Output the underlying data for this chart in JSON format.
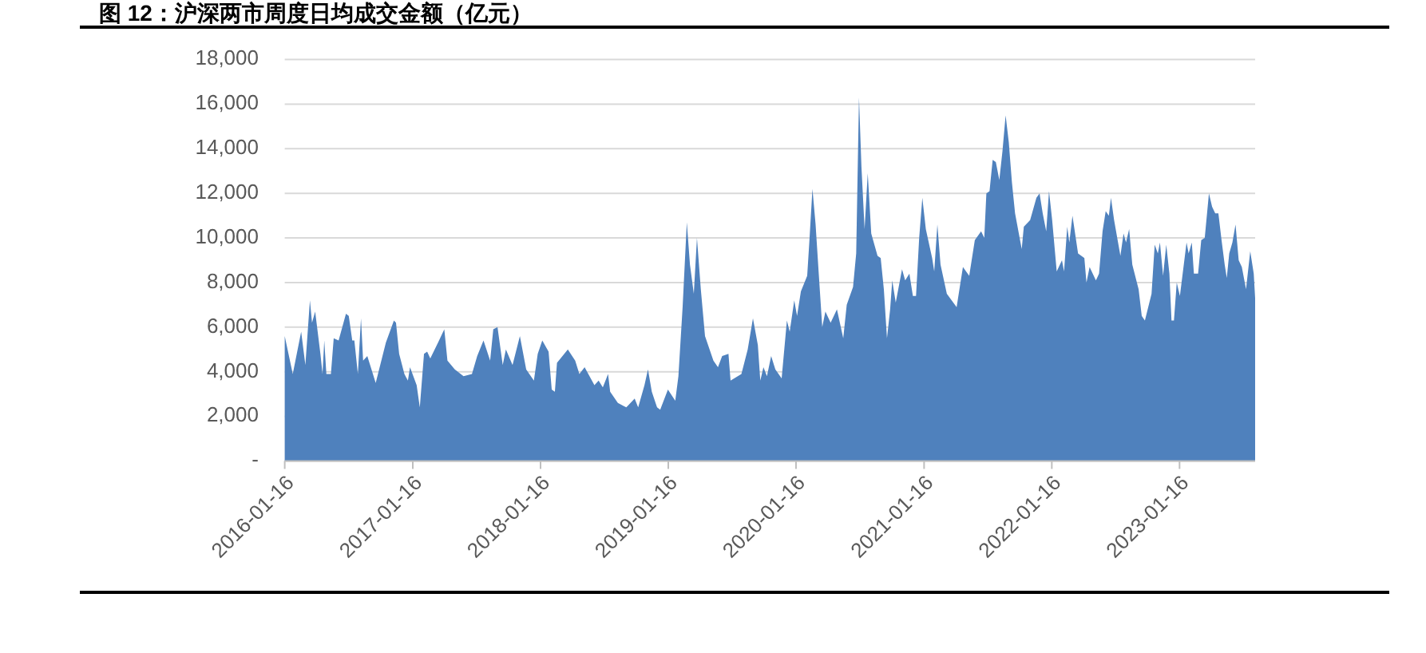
{
  "chart_data": {
    "type": "area",
    "title": "图 12：沪深两市周度日均成交金额（亿元）",
    "color": "#4f81bd",
    "grid": "y",
    "xlim": [
      "2016-01-16",
      "2023-08-20"
    ],
    "xticks": [
      "2016-01-16",
      "2017-01-16",
      "2018-01-16",
      "2019-01-16",
      "2020-01-16",
      "2021-01-16",
      "2022-01-16",
      "2023-01-16"
    ],
    "ylim": [
      0,
      18000
    ],
    "yticks": [
      {
        "value": 0,
        "label": "-"
      },
      {
        "value": 2000,
        "label": "2,000"
      },
      {
        "value": 4000,
        "label": "4,000"
      },
      {
        "value": 6000,
        "label": "6,000"
      },
      {
        "value": 8000,
        "label": "8,000"
      },
      {
        "value": 10000,
        "label": "10,000"
      },
      {
        "value": 12000,
        "label": "12,000"
      },
      {
        "value": 14000,
        "label": "14,000"
      },
      {
        "value": 16000,
        "label": "16,000"
      },
      {
        "value": 18000,
        "label": "18,000"
      }
    ],
    "x": [
      "2016-01-16",
      "2016-02-08",
      "2016-03-03",
      "2016-03-15",
      "2016-03-28",
      "2016-04-03",
      "2016-04-12",
      "2016-04-27",
      "2016-05-03",
      "2016-05-08",
      "2016-05-14",
      "2016-05-27",
      "2016-06-04",
      "2016-06-18",
      "2016-07-09",
      "2016-07-17",
      "2016-07-27",
      "2016-08-02",
      "2016-08-12",
      "2016-08-21",
      "2016-08-27",
      "2016-09-08",
      "2016-10-02",
      "2016-10-31",
      "2016-11-23",
      "2016-11-29",
      "2016-12-08",
      "2016-12-23",
      "2017-01-02",
      "2017-01-08",
      "2017-01-27",
      "2017-02-05",
      "2017-02-17",
      "2017-02-26",
      "2017-03-07",
      "2017-03-29",
      "2017-04-16",
      "2017-04-25",
      "2017-05-16",
      "2017-06-10",
      "2017-07-04",
      "2017-07-19",
      "2017-08-06",
      "2017-08-25",
      "2017-09-03",
      "2017-09-15",
      "2017-09-30",
      "2017-10-09",
      "2017-10-28",
      "2017-11-18",
      "2017-12-06",
      "2017-12-28",
      "2018-01-08",
      "2018-01-21",
      "2018-02-08",
      "2018-02-17",
      "2018-02-26",
      "2018-03-04",
      "2018-04-04",
      "2018-04-25",
      "2018-05-07",
      "2018-05-22",
      "2018-06-19",
      "2018-07-01",
      "2018-07-13",
      "2018-07-28",
      "2018-08-03",
      "2018-08-25",
      "2018-09-18",
      "2018-10-12",
      "2018-10-22",
      "2018-11-09",
      "2018-11-19",
      "2018-11-30",
      "2018-12-15",
      "2018-12-24",
      "2019-01-15",
      "2019-02-05",
      "2019-02-14",
      "2019-02-26",
      "2019-03-10",
      "2019-03-19",
      "2019-03-30",
      "2019-04-08",
      "2019-04-19",
      "2019-05-01",
      "2019-05-25",
      "2019-06-07",
      "2019-06-19",
      "2019-07-07",
      "2019-07-13",
      "2019-08-13",
      "2019-08-31",
      "2019-09-15",
      "2019-09-29",
      "2019-10-06",
      "2019-10-15",
      "2019-10-25",
      "2019-11-06",
      "2019-11-18",
      "2019-12-06",
      "2019-12-21",
      "2019-12-29",
      "2020-01-11",
      "2020-01-19",
      "2020-01-30",
      "2020-02-17",
      "2020-02-23",
      "2020-03-03",
      "2020-03-12",
      "2020-03-21",
      "2020-03-31",
      "2020-04-09",
      "2020-04-24",
      "2020-05-12",
      "2020-05-30",
      "2020-06-09",
      "2020-06-27",
      "2020-07-06",
      "2020-07-14",
      "2020-07-21",
      "2020-07-30",
      "2020-08-08",
      "2020-08-18",
      "2020-09-05",
      "2020-09-14",
      "2020-09-23",
      "2020-10-02",
      "2020-10-11",
      "2020-10-17",
      "2020-10-27",
      "2020-11-14",
      "2020-11-23",
      "2020-12-05",
      "2020-12-15",
      "2020-12-24",
      "2021-01-02",
      "2021-01-11",
      "2021-01-21",
      "2021-02-08",
      "2021-02-14",
      "2021-02-23",
      "2021-03-04",
      "2021-03-22",
      "2021-04-19",
      "2021-05-07",
      "2021-05-25",
      "2021-06-10",
      "2021-06-28",
      "2021-07-07",
      "2021-07-13",
      "2021-07-22",
      "2021-07-31",
      "2021-08-09",
      "2021-08-19",
      "2021-08-28",
      "2021-09-06",
      "2021-09-15",
      "2021-09-24",
      "2021-10-03",
      "2021-10-22",
      "2021-10-28",
      "2021-11-15",
      "2021-12-03",
      "2021-12-12",
      "2021-12-21",
      "2021-12-31",
      "2022-01-08",
      "2022-01-17",
      "2022-01-30",
      "2022-02-14",
      "2022-02-20",
      "2022-03-01",
      "2022-03-07",
      "2022-03-16",
      "2022-04-01",
      "2022-04-19",
      "2022-04-25",
      "2022-05-04",
      "2022-05-22",
      "2022-05-31",
      "2022-06-10",
      "2022-06-19",
      "2022-06-28",
      "2022-07-04",
      "2022-07-13",
      "2022-07-31",
      "2022-08-09",
      "2022-08-16",
      "2022-08-25",
      "2022-09-03",
      "2022-09-21",
      "2022-09-30",
      "2022-10-09",
      "2022-10-28",
      "2022-11-06",
      "2022-11-15",
      "2022-11-21",
      "2022-11-30",
      "2022-12-09",
      "2022-12-18",
      "2022-12-24",
      "2022-12-31",
      "2023-01-08",
      "2023-01-17",
      "2023-02-05",
      "2023-02-11",
      "2023-02-20",
      "2023-02-26",
      "2023-03-10",
      "2023-03-19",
      "2023-03-29",
      "2023-04-10",
      "2023-04-19",
      "2023-04-28",
      "2023-05-07",
      "2023-05-16",
      "2023-05-25",
      "2023-05-31",
      "2023-06-07",
      "2023-06-16",
      "2023-06-25",
      "2023-07-04",
      "2023-07-13",
      "2023-07-25",
      "2023-08-06",
      "2023-08-16",
      "2023-08-20"
    ],
    "values": [
      5600,
      3900,
      5800,
      4300,
      7200,
      6200,
      6700,
      4800,
      3900,
      5400,
      3900,
      3900,
      5500,
      5400,
      6600,
      6500,
      5400,
      5400,
      3900,
      6400,
      4500,
      4700,
      3500,
      5300,
      6300,
      6200,
      4800,
      3900,
      3600,
      4200,
      3400,
      2400,
      4800,
      4900,
      4600,
      5300,
      5900,
      4500,
      4100,
      3800,
      3900,
      4700,
      5400,
      4500,
      5900,
      6000,
      4300,
      5000,
      4300,
      5600,
      4100,
      3600,
      4800,
      5400,
      4900,
      3200,
      3100,
      4400,
      5000,
      4500,
      3900,
      4200,
      3400,
      3600,
      3300,
      3900,
      3100,
      2600,
      2400,
      2800,
      2400,
      3400,
      4100,
      3100,
      2400,
      2300,
      3200,
      2700,
      3800,
      6900,
      10700,
      8800,
      7500,
      10000,
      7700,
      5600,
      4500,
      4200,
      4700,
      4800,
      3600,
      3900,
      5000,
      6400,
      5200,
      3600,
      4200,
      3800,
      4700,
      4100,
      3700,
      6300,
      5800,
      7200,
      6500,
      7600,
      8300,
      9800,
      12200,
      10600,
      8400,
      6000,
      6700,
      6200,
      6800,
      5500,
      7000,
      7800,
      9300,
      16300,
      13200,
      10400,
      12900,
      10200,
      9200,
      9100,
      7700,
      5500,
      6800,
      8100,
      7100,
      8600,
      8100,
      8400,
      7400,
      7400,
      10000,
      11800,
      10400,
      9100,
      8500,
      10600,
      8800,
      7500,
      6900,
      8700,
      8300,
      9900,
      10300,
      10000,
      12000,
      12100,
      13500,
      13400,
      12600,
      13900,
      15500,
      14300,
      12500,
      11100,
      9500,
      10500,
      10800,
      11800,
      12000,
      11100,
      10300,
      12100,
      10800,
      8500,
      9000,
      8500,
      10500,
      9800,
      11000,
      9300,
      9100,
      8000,
      8700,
      8100,
      8400,
      10300,
      11200,
      11000,
      11800,
      10800,
      9200,
      10200,
      9800,
      10400,
      8800,
      7700,
      6500,
      6300,
      7500,
      9700,
      9300,
      9800,
      8300,
      9700,
      8400,
      6300,
      6300,
      8000,
      7400,
      9800,
      9300,
      9800,
      8400,
      8400,
      9900,
      10000,
      12000,
      11400,
      11100,
      11100,
      9900,
      8800,
      8200,
      9300,
      9800,
      10600,
      9000,
      8700,
      7700,
      9400,
      8400,
      7300
    ]
  }
}
